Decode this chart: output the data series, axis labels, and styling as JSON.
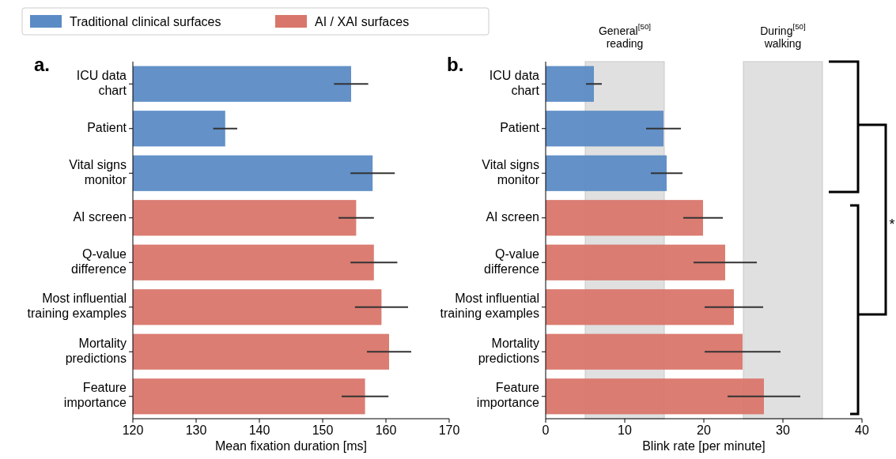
{
  "chart_data": [
    {
      "type": "bar",
      "orientation": "horizontal",
      "title": "a.",
      "xlabel": "Mean fixation duration [ms]",
      "categories": [
        "ICU data\nchart",
        "Patient",
        "Vital signs\nmonitor",
        "AI screen",
        "Q-value\ndifference",
        "Most influential\ntraining examples",
        "Mortality\npredictions",
        "Feature\nimportance"
      ],
      "xlim": [
        120,
        170
      ],
      "xticks": [
        120,
        130,
        140,
        150,
        160,
        170
      ],
      "legend": "top",
      "series": [
        {
          "name": "Traditional clinical surfaces",
          "color": "#5b8bc5",
          "values": [
            154.5,
            134.6,
            157.9,
            null,
            null,
            null,
            null,
            null
          ],
          "errors": [
            2.7,
            1.9,
            3.5,
            null,
            null,
            null,
            null,
            null
          ]
        },
        {
          "name": "AI / XAI surfaces",
          "color": "#d9766b",
          "values": [
            null,
            null,
            null,
            155.3,
            158.1,
            159.3,
            160.5,
            156.7
          ],
          "errors": [
            null,
            null,
            null,
            2.8,
            3.7,
            4.2,
            3.5,
            3.7
          ]
        }
      ]
    },
    {
      "type": "bar",
      "orientation": "horizontal",
      "title": "b.",
      "xlabel": "Blink rate [per minute]",
      "categories": [
        "ICU data\nchart",
        "Patient",
        "Vital signs\nmonitor",
        "AI screen",
        "Q-value\ndifference",
        "Most influential\ntraining examples",
        "Mortality\npredictions",
        "Feature\nimportance"
      ],
      "xlim": [
        0,
        40
      ],
      "xticks": [
        0,
        10,
        20,
        30,
        40
      ],
      "annotations": [
        "*"
      ],
      "bands": [
        {
          "axis": "x",
          "from": 5,
          "to": 15,
          "label": "General$^{[50]}$\nreading",
          "color": "#d9d9d9"
        },
        {
          "axis": "x",
          "from": 25,
          "to": 35,
          "label": "During$^{[50]}$\nwalking",
          "color": "#d9d9d9"
        }
      ],
      "series": [
        {
          "name": "Traditional clinical surfaces",
          "color": "#5b8bc5",
          "values": [
            6.1,
            14.9,
            15.3,
            null,
            null,
            null,
            null,
            null
          ],
          "errors": [
            1.0,
            2.2,
            2.0,
            null,
            null,
            null,
            null,
            null
          ]
        },
        {
          "name": "AI / XAI surfaces",
          "color": "#d9766b",
          "values": [
            null,
            null,
            null,
            19.9,
            22.7,
            23.8,
            24.9,
            27.6
          ],
          "errors": [
            null,
            null,
            null,
            2.5,
            4.0,
            3.7,
            4.8,
            4.6
          ]
        }
      ]
    }
  ]
}
